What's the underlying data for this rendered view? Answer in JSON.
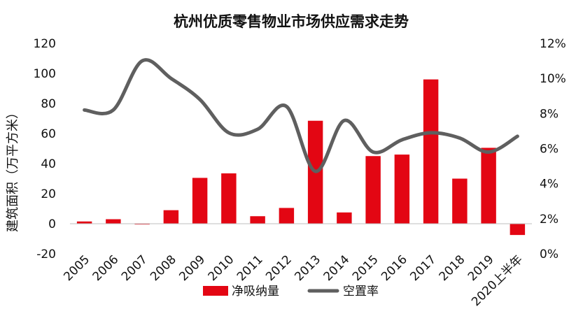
{
  "chart_data": {
    "type": "bar",
    "title": "杭州优质零售物业市场供应需求走势",
    "categories": [
      "2005",
      "2006",
      "2007",
      "2008",
      "2009",
      "2010",
      "2011",
      "2012",
      "2013",
      "2014",
      "2015",
      "2016",
      "2017",
      "2018",
      "2019",
      "2020上半年"
    ],
    "ylabel": "建筑面积（万平方米）",
    "xlabel": "",
    "ylim": [
      -20,
      120
    ],
    "y_ticks": [
      -20,
      0,
      20,
      40,
      60,
      80,
      100,
      120
    ],
    "y2lim": [
      0,
      12
    ],
    "y2_ticks": [
      "0%",
      "2%",
      "4%",
      "6%",
      "8%",
      "10%",
      "12%"
    ],
    "grid": false,
    "legend_position": "bottom",
    "series": [
      {
        "name": "净吸纳量",
        "type": "bar",
        "axis": "left",
        "color": "#E30613",
        "values": [
          1.5,
          3,
          -0.5,
          9,
          30.5,
          33.5,
          5,
          10.5,
          68.5,
          7.5,
          45,
          46,
          96,
          30,
          50.5,
          -7.5
        ]
      },
      {
        "name": "空置率",
        "type": "line",
        "axis": "right",
        "color": "#5F5F5F",
        "unit": "%",
        "values": [
          8.2,
          8.2,
          11.0,
          10.0,
          8.8,
          6.9,
          7.1,
          8.4,
          4.7,
          7.6,
          5.8,
          6.5,
          6.9,
          6.6,
          5.8,
          6.7
        ]
      }
    ]
  }
}
